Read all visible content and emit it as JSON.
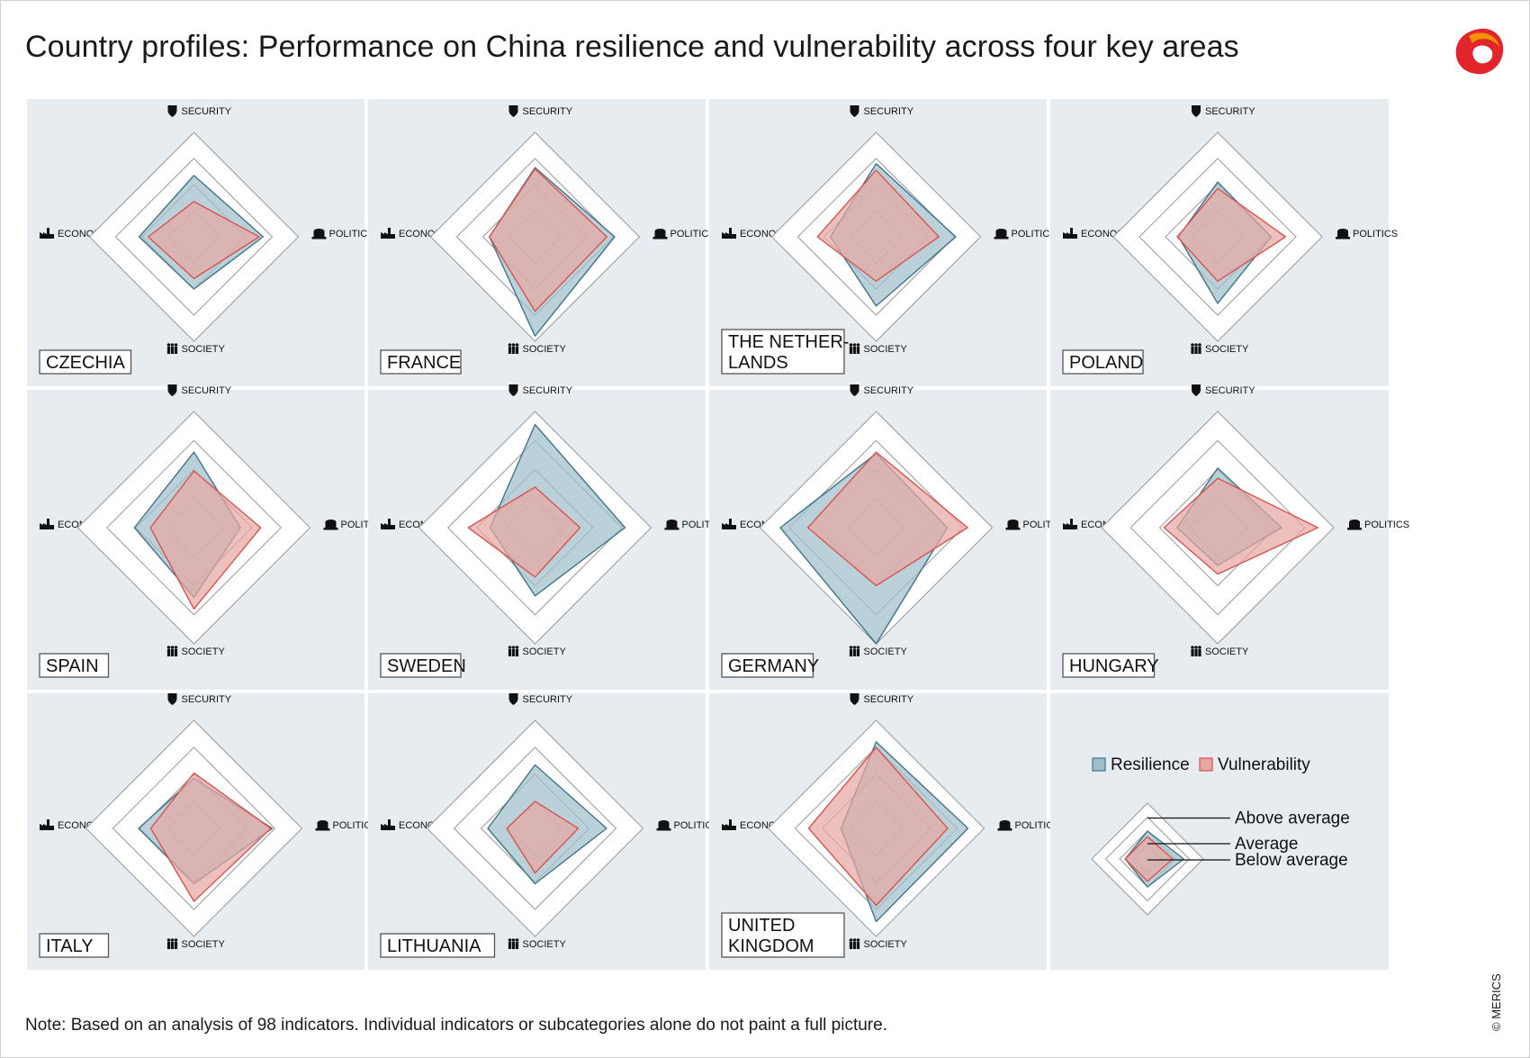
{
  "title": "Country profiles: Performance on China resilience and vulnerability across four key areas",
  "note": "Note: Based on an analysis of 98 indicators. Individual indicators or subcategories alone do not paint a full picture.",
  "copyright": "© MERICS",
  "colors": {
    "panel_bg": "#e6ecef",
    "resilience_fill": "#9fbfcc",
    "resilience_stroke": "#3f7489",
    "vulnerability_fill": "#e6a7a4",
    "vulnerability_stroke": "#d9544f",
    "logo_red": "#e2242b",
    "logo_orange": "#f39200"
  },
  "icons": {
    "security": "shield-icon",
    "politics": "parliament-icon",
    "society": "people-icon",
    "economy": "factory-icon"
  },
  "chart_data": {
    "type": "radar",
    "axes": [
      "SECURITY",
      "POLITICS",
      "SOCIETY",
      "ECONOMY"
    ],
    "scale": {
      "rings": [
        1,
        2,
        3,
        4
      ],
      "range": [
        0,
        4
      ]
    },
    "legend": {
      "resilience": "Resilience",
      "vulnerability": "Vulnerability",
      "above": "Above average",
      "average": "Average",
      "below": "Below average"
    },
    "countries": [
      {
        "name": "CZECHIA",
        "resilience": [
          2.35,
          2.65,
          2.0,
          2.1
        ],
        "vulnerability": [
          1.35,
          2.5,
          1.6,
          1.75
        ]
      },
      {
        "name": "FRANCE",
        "resilience": [
          2.65,
          3.05,
          3.8,
          1.75
        ],
        "vulnerability": [
          2.6,
          2.75,
          2.85,
          1.75
        ]
      },
      {
        "name": "THE NETHER-LANDS",
        "resilience": [
          2.8,
          3.05,
          2.65,
          1.75
        ],
        "vulnerability": [
          2.55,
          2.4,
          1.7,
          2.25
        ]
      },
      {
        "name": "POLAND",
        "resilience": [
          2.1,
          2.05,
          2.55,
          1.5
        ],
        "vulnerability": [
          1.85,
          2.6,
          1.7,
          1.55
        ]
      },
      {
        "name": "SPAIN",
        "resilience": [
          2.6,
          1.6,
          2.4,
          2.05
        ],
        "vulnerability": [
          1.95,
          2.3,
          2.8,
          1.5
        ]
      },
      {
        "name": "SWEDEN",
        "resilience": [
          3.55,
          3.1,
          2.35,
          1.55
        ],
        "vulnerability": [
          1.4,
          1.55,
          1.7,
          2.3
        ]
      },
      {
        "name": "GERMANY",
        "resilience": [
          2.55,
          2.45,
          4.0,
          3.3
        ],
        "vulnerability": [
          2.6,
          3.15,
          2.0,
          2.35
        ]
      },
      {
        "name": "HUNGARY",
        "resilience": [
          2.05,
          2.2,
          1.3,
          1.4
        ],
        "vulnerability": [
          1.7,
          3.45,
          1.6,
          1.85
        ]
      },
      {
        "name": "ITALY",
        "resilience": [
          1.85,
          2.9,
          2.05,
          2.05
        ],
        "vulnerability": [
          2.05,
          2.85,
          2.7,
          1.6
        ]
      },
      {
        "name": "LITHUANIA",
        "resilience": [
          2.35,
          2.65,
          2.05,
          1.75
        ],
        "vulnerability": [
          1.0,
          1.6,
          1.65,
          1.05
        ]
      },
      {
        "name": "UNITED KINGDOM",
        "resilience": [
          3.2,
          3.4,
          3.45,
          1.3
        ],
        "vulnerability": [
          3.0,
          2.65,
          2.85,
          2.5
        ]
      }
    ]
  }
}
